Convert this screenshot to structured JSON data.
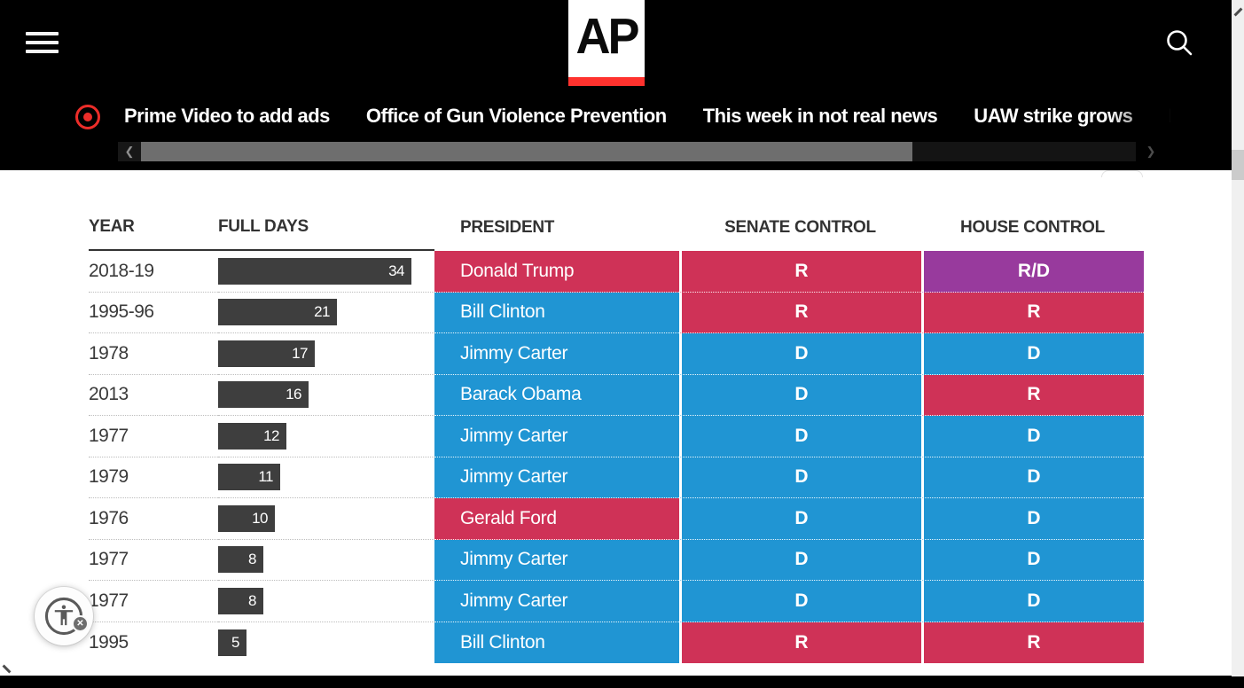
{
  "header": {
    "logo_text": "AP",
    "ticker_items": [
      {
        "label": "Prime Video to add ads"
      },
      {
        "label": "Office of Gun Violence Prevention"
      },
      {
        "label": "This week in not real news"
      },
      {
        "label": "UAW strike grows"
      },
      {
        "label": "Bo"
      }
    ],
    "scroll_left_arrow": "❮",
    "scroll_right_arrow": "❯"
  },
  "table": {
    "headers": {
      "year": "YEAR",
      "days": "FULL DAYS",
      "president": "PRESIDENT",
      "senate": "SENATE CONTROL",
      "house": "HOUSE CONTROL"
    },
    "rows": [
      {
        "year": "2018-19",
        "days": 34,
        "president": "Donald Trump",
        "party": "R",
        "senate": "R",
        "house": "R/D"
      },
      {
        "year": "1995-96",
        "days": 21,
        "president": "Bill Clinton",
        "party": "D",
        "senate": "R",
        "house": "R"
      },
      {
        "year": "1978",
        "days": 17,
        "president": "Jimmy Carter",
        "party": "D",
        "senate": "D",
        "house": "D"
      },
      {
        "year": "2013",
        "days": 16,
        "president": "Barack Obama",
        "party": "D",
        "senate": "D",
        "house": "R"
      },
      {
        "year": "1977",
        "days": 12,
        "president": "Jimmy Carter",
        "party": "D",
        "senate": "D",
        "house": "D"
      },
      {
        "year": "1979",
        "days": 11,
        "president": "Jimmy Carter",
        "party": "D",
        "senate": "D",
        "house": "D"
      },
      {
        "year": "1976",
        "days": 10,
        "president": "Gerald Ford",
        "party": "R",
        "senate": "D",
        "house": "D"
      },
      {
        "year": "1977",
        "days": 8,
        "president": "Jimmy Carter",
        "party": "D",
        "senate": "D",
        "house": "D"
      },
      {
        "year": "1977",
        "days": 8,
        "president": "Jimmy Carter",
        "party": "D",
        "senate": "D",
        "house": "D"
      },
      {
        "year": "1995",
        "days": 5,
        "president": "Bill Clinton",
        "party": "D",
        "senate": "R",
        "house": "R"
      }
    ]
  },
  "colors": {
    "republican": "#cf3257",
    "democrat": "#2095d3",
    "split": "#983a9d",
    "bar": "#3e3e3e",
    "ap_red": "#ff322e",
    "ticker_red": "#ec2d29"
  },
  "a11y": {
    "close_badge": "✕"
  }
}
